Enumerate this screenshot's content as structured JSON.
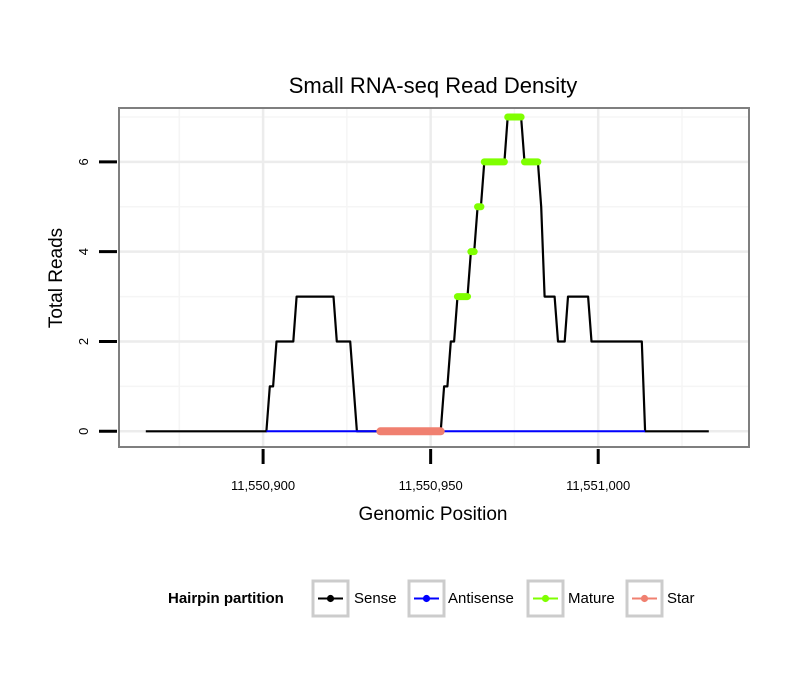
{
  "chart_data": {
    "type": "line",
    "title": "Small RNA-seq Read Density",
    "xlabel": "Genomic Position",
    "ylabel": "Total Reads",
    "xlim": [
      11550857,
      11551045
    ],
    "ylim": [
      -0.35,
      7.2
    ],
    "xticks": [
      {
        "value": 11550900,
        "label": "11,550,900"
      },
      {
        "value": 11550950,
        "label": "11,550,950"
      },
      {
        "value": 11551000,
        "label": "11,551,000"
      }
    ],
    "yticks": [
      {
        "value": 0,
        "label": "0"
      },
      {
        "value": 2,
        "label": "2"
      },
      {
        "value": 4,
        "label": "4"
      },
      {
        "value": 6,
        "label": "6"
      }
    ],
    "x_minor_gridlines": [
      11550875,
      11550925,
      11550975,
      11551025
    ],
    "y_minor_gridlines": [
      1,
      3,
      5,
      7
    ],
    "grid": true,
    "legend": {
      "title": "Hairpin partition",
      "position": "bottom",
      "entries": [
        {
          "name": "Sense",
          "color": "#000000"
        },
        {
          "name": "Antisense",
          "color": "#0000FF"
        },
        {
          "name": "Mature",
          "color": "#7FFF00"
        },
        {
          "name": "Star",
          "color": "#F08070"
        }
      ]
    },
    "series": [
      {
        "name": "Sense",
        "color": "#000000",
        "points": [
          [
            11550865,
            0
          ],
          [
            11550901,
            0
          ],
          [
            11550902,
            1
          ],
          [
            11550903,
            1
          ],
          [
            11550904,
            2
          ],
          [
            11550909,
            2
          ],
          [
            11550910,
            3
          ],
          [
            11550921,
            3
          ],
          [
            11550922,
            2
          ],
          [
            11550926,
            2
          ],
          [
            11550928,
            0
          ],
          [
            11550953,
            0
          ],
          [
            11550954,
            1
          ],
          [
            11550955,
            1
          ],
          [
            11550956,
            2
          ],
          [
            11550957,
            2
          ],
          [
            11550958,
            3
          ],
          [
            11550961,
            3
          ],
          [
            11550962,
            4
          ],
          [
            11550963,
            4
          ],
          [
            11550964,
            5
          ],
          [
            11550965,
            5
          ],
          [
            11550966,
            6
          ],
          [
            11550972,
            6
          ],
          [
            11550973,
            7
          ],
          [
            11550977,
            7
          ],
          [
            11550978,
            6
          ],
          [
            11550982,
            6
          ],
          [
            11550983,
            5
          ],
          [
            11550984,
            3
          ],
          [
            11550987,
            3
          ],
          [
            11550988,
            2
          ],
          [
            11550990,
            2
          ],
          [
            11550991,
            3
          ],
          [
            11550997,
            3
          ],
          [
            11550998,
            2
          ],
          [
            11551013,
            2
          ],
          [
            11551014,
            0
          ],
          [
            11551033,
            0
          ]
        ]
      },
      {
        "name": "Antisense",
        "color": "#0000FF",
        "points": [
          [
            11550901,
            0
          ],
          [
            11551014,
            0
          ]
        ]
      },
      {
        "name": "Mature",
        "color": "#7FFF00",
        "points": [
          [
            11550958,
            3
          ],
          [
            11550961,
            3
          ],
          [
            11550962,
            4
          ],
          [
            11550963,
            4
          ],
          [
            11550964,
            5
          ],
          [
            11550965,
            5
          ],
          [
            11550966,
            6
          ],
          [
            11550972,
            6
          ],
          [
            11550973,
            7
          ],
          [
            11550977,
            7
          ],
          [
            11550978,
            6
          ],
          [
            11550982,
            6
          ]
        ]
      },
      {
        "name": "Star",
        "color": "#F08070",
        "points": [
          [
            11550935,
            0
          ],
          [
            11550953,
            0
          ]
        ]
      }
    ]
  }
}
